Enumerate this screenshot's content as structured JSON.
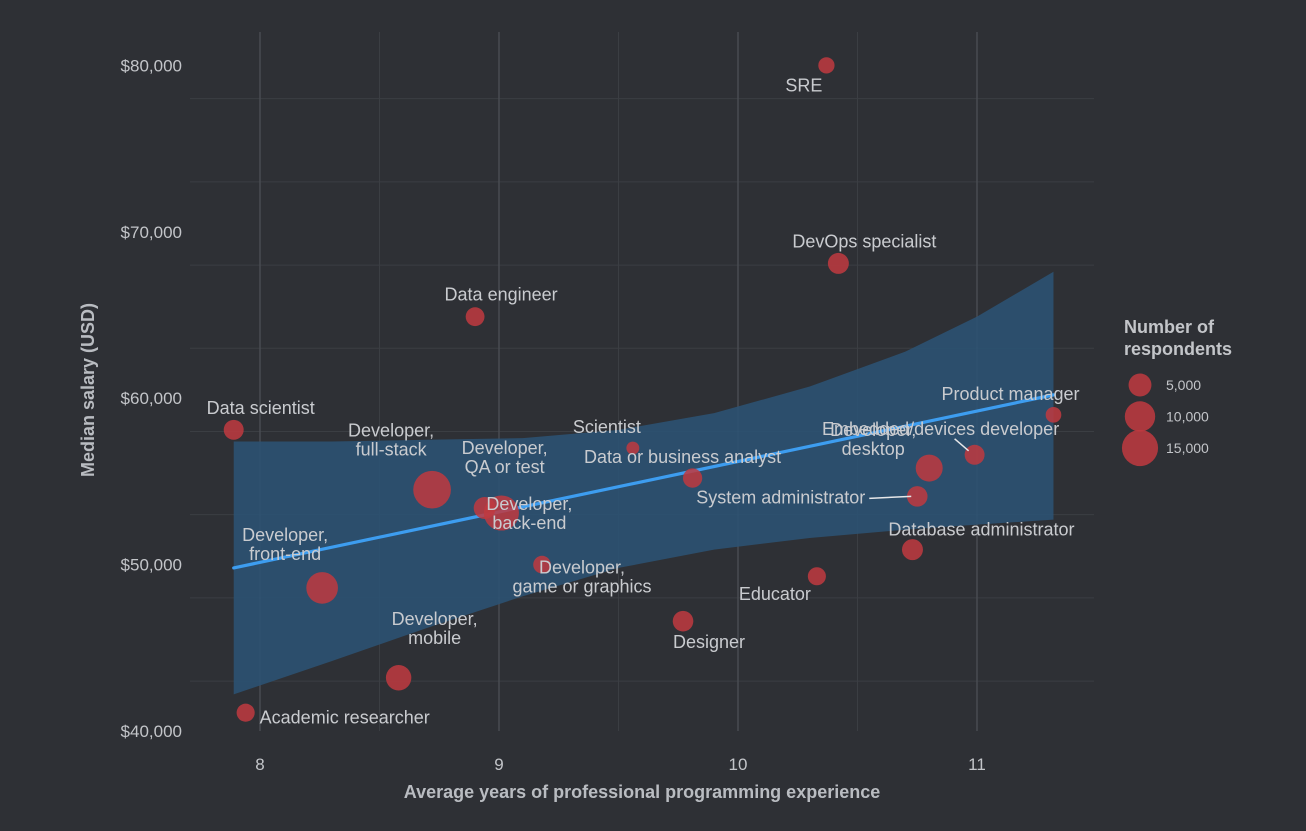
{
  "chart_data": {
    "type": "scatter",
    "xlabel": "Average years of professional programming experience",
    "ylabel": "Median salary (USD)",
    "xlim": [
      7.7,
      11.5
    ],
    "ylim": [
      38000,
      82000
    ],
    "x_ticks": [
      8,
      9,
      10,
      11
    ],
    "y_ticks": [
      40000,
      50000,
      60000,
      70000,
      80000
    ],
    "y_tick_labels": [
      "$40,000",
      "$50,000",
      "$60,000",
      "$70,000",
      "$80,000"
    ],
    "grid": true,
    "legend_position": "right",
    "point_color": "#c0393f",
    "line_color": "#3d9df0",
    "band_color": "#2c5376",
    "points": [
      {
        "x": 10.37,
        "y": 80000,
        "size": 2000,
        "label": [
          "SRE"
        ]
      },
      {
        "x": 10.42,
        "y": 68100,
        "size": 4000,
        "label": [
          "DevOps specialist"
        ]
      },
      {
        "x": 8.9,
        "y": 64900,
        "size": 3000,
        "label": [
          "Data engineer"
        ]
      },
      {
        "x": 7.89,
        "y": 58100,
        "size": 3500,
        "label": [
          "Data scientist"
        ]
      },
      {
        "x": 11.32,
        "y": 59000,
        "size": 1800,
        "label": [
          "Product manager"
        ]
      },
      {
        "x": 9.56,
        "y": 57000,
        "size": 1000,
        "label": [
          "Scientist"
        ]
      },
      {
        "x": 10.99,
        "y": 56600,
        "size": 3500,
        "label": [
          "Embedded/devices developer"
        ]
      },
      {
        "x": 9.81,
        "y": 55200,
        "size": 3200,
        "label": [
          "Data or business analyst"
        ]
      },
      {
        "x": 10.8,
        "y": 55800,
        "size": 7500,
        "label": [
          "Developer,",
          "desktop"
        ]
      },
      {
        "x": 10.75,
        "y": 54100,
        "size": 3800,
        "label": [
          "System administrator"
        ]
      },
      {
        "x": 8.72,
        "y": 54500,
        "size": 16500,
        "label": [
          "Developer,",
          "full-stack"
        ]
      },
      {
        "x": 8.94,
        "y": 53400,
        "size": 4500,
        "label": [
          "Developer,",
          "QA or test"
        ]
      },
      {
        "x": 9.01,
        "y": 53100,
        "size": 14000,
        "label": [
          "Developer,",
          "back-end"
        ]
      },
      {
        "x": 10.73,
        "y": 50900,
        "size": 4000,
        "label": [
          "Database administrator"
        ]
      },
      {
        "x": 9.18,
        "y": 50000,
        "size": 2500,
        "label": [
          "Developer,",
          "game or graphics"
        ]
      },
      {
        "x": 8.26,
        "y": 48600,
        "size": 11000,
        "label": [
          "Developer,",
          "front-end"
        ]
      },
      {
        "x": 10.33,
        "y": 49300,
        "size": 2700,
        "label": [
          "Educator"
        ]
      },
      {
        "x": 9.77,
        "y": 46600,
        "size": 3800,
        "label": [
          "Designer"
        ]
      },
      {
        "x": 8.58,
        "y": 43200,
        "size": 6500,
        "label": [
          "Developer,",
          "mobile"
        ]
      },
      {
        "x": 7.94,
        "y": 41100,
        "size": 2700,
        "label": [
          "Academic researcher"
        ]
      }
    ],
    "trend_line": {
      "x": [
        7.89,
        11.32
      ],
      "y": [
        49800,
        60200
      ]
    },
    "confidence_band": {
      "x": [
        7.89,
        8.3,
        8.7,
        9.1,
        9.5,
        9.9,
        10.3,
        10.7,
        11.0,
        11.32
      ],
      "upper": [
        57400,
        57400,
        57500,
        57600,
        58100,
        59100,
        60700,
        62800,
        64900,
        67600
      ],
      "lower": [
        42200,
        44200,
        46200,
        48100,
        49800,
        50900,
        51600,
        52100,
        52400,
        52700
      ]
    },
    "legend": {
      "title": [
        "Number of",
        "respondents"
      ],
      "entries": [
        {
          "label": "5,000",
          "size": 5000
        },
        {
          "label": "10,000",
          "size": 10000
        },
        {
          "label": "15,000",
          "size": 15000
        }
      ]
    }
  }
}
